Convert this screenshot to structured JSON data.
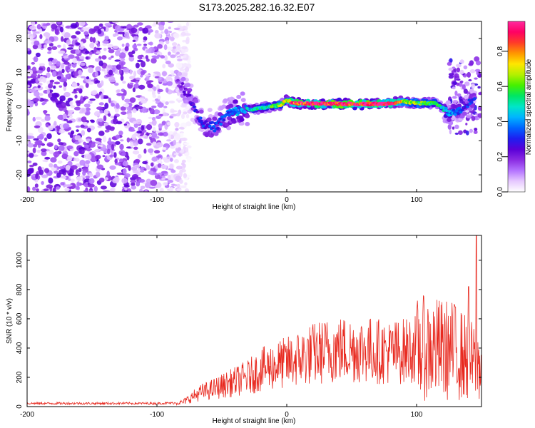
{
  "title": "S173.2025.282.16.32.E07",
  "charts": [
    {
      "type": "heatmap",
      "xlabel": "Height of straight line (km)",
      "ylabel": "Frequency (Hz)",
      "xlim": [
        -200,
        150
      ],
      "ylim": [
        -25,
        25
      ],
      "xticks": [
        -200,
        -100,
        0,
        100
      ],
      "yticks": [
        -20,
        -10,
        0,
        10,
        20
      ],
      "colorbar": {
        "label": "Normalized spectral amplitude",
        "range": [
          0,
          0.97
        ],
        "ticks": [
          0.0,
          0.2,
          0.4,
          0.6,
          0.8
        ],
        "colors": [
          "#ffffff",
          "#e6c8ff",
          "#b473ff",
          "#8a2be2",
          "#5a00d8",
          "#1e1ef0",
          "#0064ff",
          "#00b4ff",
          "#00e6c8",
          "#00e664",
          "#46f000",
          "#b4f000",
          "#ffe600",
          "#ff9600",
          "#ff3c28",
          "#ff0064",
          "#ff2a9e"
        ]
      },
      "features": {
        "noise_region_x": [
          -200,
          -85
        ],
        "noise_level": 0.1,
        "ridge": [
          {
            "x": -85,
            "f": 8,
            "a": 0.15
          },
          {
            "x": -75,
            "f": 3,
            "a": 0.25
          },
          {
            "x": -65,
            "f": -5,
            "a": 0.3
          },
          {
            "x": -55,
            "f": -6,
            "a": 0.3
          },
          {
            "x": -45,
            "f": -2,
            "a": 0.35
          },
          {
            "x": -35,
            "f": -1,
            "a": 0.4
          },
          {
            "x": -20,
            "f": -0.5,
            "a": 0.5
          },
          {
            "x": -5,
            "f": 0.5,
            "a": 0.6
          },
          {
            "x": 0,
            "f": 2,
            "a": 0.7
          },
          {
            "x": 5,
            "f": 1,
            "a": 0.9
          },
          {
            "x": 30,
            "f": 0.8,
            "a": 0.95
          },
          {
            "x": 60,
            "f": 0.8,
            "a": 0.95
          },
          {
            "x": 75,
            "f": 0.8,
            "a": 0.95
          },
          {
            "x": 90,
            "f": 1.5,
            "a": 0.7
          },
          {
            "x": 100,
            "f": 1,
            "a": 0.6
          },
          {
            "x": 115,
            "f": 1,
            "a": 0.55
          },
          {
            "x": 125,
            "f": -2,
            "a": 0.4
          },
          {
            "x": 135,
            "f": -1,
            "a": 0.3
          },
          {
            "x": 145,
            "f": 3,
            "a": 0.3
          }
        ]
      }
    },
    {
      "type": "line",
      "xlabel": "Height of straight line (km)",
      "ylabel": "SNR (10 * v/v)",
      "xlim": [
        -200,
        150
      ],
      "ylim": [
        0,
        1170
      ],
      "xticks": [
        -200,
        -100,
        0,
        100
      ],
      "yticks": [
        0,
        200,
        400,
        600,
        800,
        1000
      ],
      "color": "#e8291f",
      "series": [
        {
          "name": "SNR",
          "x": [
            -200,
            -150,
            -100,
            -85,
            -80,
            -75,
            -70,
            -65,
            -60,
            -50,
            -40,
            -30,
            -20,
            -10,
            0,
            10,
            20,
            30,
            40,
            50,
            60,
            70,
            80,
            90,
            100,
            110,
            120,
            130,
            140,
            145,
            150
          ],
          "y": [
            22,
            22,
            22,
            25,
            30,
            55,
            80,
            100,
            110,
            140,
            170,
            200,
            250,
            280,
            300,
            330,
            360,
            380,
            390,
            390,
            390,
            380,
            370,
            380,
            400,
            400,
            390,
            380,
            320,
            300,
            280
          ]
        }
      ],
      "peaks": [
        {
          "x": 130,
          "y": 680
        },
        {
          "x": 140,
          "y": 820
        },
        {
          "x": 146,
          "y": 1170
        }
      ]
    }
  ]
}
